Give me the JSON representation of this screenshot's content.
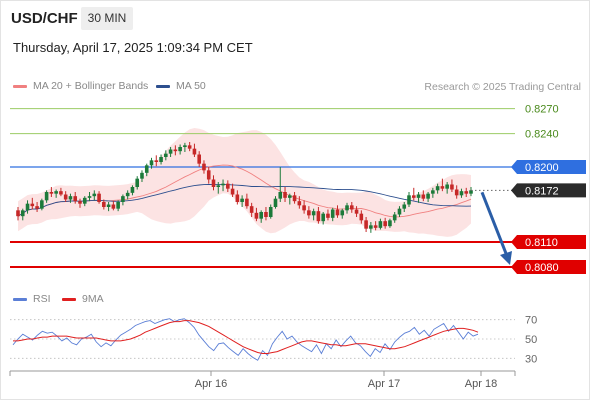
{
  "header": {
    "symbol": "USD/CHF",
    "timeframe": "30 MIN",
    "datetime": "Thursday, April 17, 2025 1:09:34 PM CET",
    "credit": "Research © 2025 Trading Central"
  },
  "legend": {
    "bollinger_label": "MA 20 + Bollinger Bands",
    "ma50_label": "MA 50",
    "rsi_label": "RSI",
    "nine_ma_label": "9MA"
  },
  "colors": {
    "bollinger": "#f08080",
    "band_fill": "#fbd9d9",
    "ma50": "#2d4f8e",
    "up_candle": "#1c7a3a",
    "down_candle": "#c62828",
    "resistance_green": "#9ccc65",
    "resistance_label": "#4a8a1c",
    "pivot_blue": "#2f6fe0",
    "support_red": "#e00000",
    "arrow": "#2b5ea7",
    "rsi": "#5b7fd6",
    "rsi_ma": "#e02020"
  },
  "chart_data": [
    {
      "type": "candlestick",
      "title": "USD/CHF 30 MIN",
      "x_tick_labels": [
        "Apr 16",
        "Apr 17",
        "Apr 18"
      ],
      "ylim": [
        0.8062,
        0.829
      ],
      "current_price": 0.8172,
      "levels": [
        {
          "label": "0.8270",
          "value": 0.827,
          "kind": "resistance"
        },
        {
          "label": "0.8240",
          "value": 0.824,
          "kind": "resistance"
        },
        {
          "label": "0.8200",
          "value": 0.82,
          "kind": "pivot"
        },
        {
          "label": "0.8110",
          "value": 0.811,
          "kind": "support"
        },
        {
          "label": "0.8080",
          "value": 0.808,
          "kind": "support"
        }
      ],
      "projection": {
        "from": 0.8172,
        "to": 0.808
      },
      "candles": [
        [
          0.8148,
          0.8152,
          0.8136,
          0.8141
        ],
        [
          0.8141,
          0.815,
          0.8136,
          0.8148
        ],
        [
          0.8148,
          0.816,
          0.8144,
          0.8156
        ],
        [
          0.8156,
          0.8163,
          0.8149,
          0.8153
        ],
        [
          0.8153,
          0.8158,
          0.8146,
          0.815
        ],
        [
          0.815,
          0.8162,
          0.8148,
          0.816
        ],
        [
          0.816,
          0.8172,
          0.8157,
          0.817
        ],
        [
          0.817,
          0.8176,
          0.8164,
          0.8168
        ],
        [
          0.8168,
          0.8173,
          0.8163,
          0.8171
        ],
        [
          0.8171,
          0.8175,
          0.8165,
          0.8167
        ],
        [
          0.8167,
          0.8171,
          0.8158,
          0.8161
        ],
        [
          0.8161,
          0.8168,
          0.8157,
          0.8165
        ],
        [
          0.8165,
          0.817,
          0.8156,
          0.8159
        ],
        [
          0.8159,
          0.8162,
          0.8151,
          0.8156
        ],
        [
          0.8156,
          0.8165,
          0.8153,
          0.8163
        ],
        [
          0.8163,
          0.817,
          0.8159,
          0.8165
        ],
        [
          0.8165,
          0.8172,
          0.816,
          0.8168
        ],
        [
          0.8168,
          0.8171,
          0.8156,
          0.8158
        ],
        [
          0.8158,
          0.8161,
          0.8149,
          0.8152
        ],
        [
          0.8152,
          0.8158,
          0.8147,
          0.8155
        ],
        [
          0.8155,
          0.8159,
          0.8148,
          0.815
        ],
        [
          0.815,
          0.816,
          0.8147,
          0.8158
        ],
        [
          0.8158,
          0.8167,
          0.8154,
          0.8165
        ],
        [
          0.8165,
          0.8172,
          0.8161,
          0.8169
        ],
        [
          0.8169,
          0.8178,
          0.8166,
          0.8176
        ],
        [
          0.8176,
          0.8189,
          0.8173,
          0.8186
        ],
        [
          0.8186,
          0.8196,
          0.8182,
          0.8193
        ],
        [
          0.8193,
          0.8204,
          0.8189,
          0.8202
        ],
        [
          0.8202,
          0.8211,
          0.8198,
          0.8208
        ],
        [
          0.8208,
          0.8214,
          0.8201,
          0.8206
        ],
        [
          0.8206,
          0.8215,
          0.8203,
          0.8212
        ],
        [
          0.8212,
          0.822,
          0.8208,
          0.8216
        ],
        [
          0.8216,
          0.8224,
          0.8212,
          0.8221
        ],
        [
          0.8221,
          0.8226,
          0.8214,
          0.8219
        ],
        [
          0.8219,
          0.8227,
          0.8215,
          0.8224
        ],
        [
          0.8224,
          0.8229,
          0.8218,
          0.8226
        ],
        [
          0.8226,
          0.823,
          0.8219,
          0.8222
        ],
        [
          0.8222,
          0.8228,
          0.8212,
          0.8215
        ],
        [
          0.8215,
          0.8219,
          0.82,
          0.8204
        ],
        [
          0.8204,
          0.8208,
          0.8192,
          0.8196
        ],
        [
          0.8196,
          0.82,
          0.818,
          0.8185
        ],
        [
          0.8185,
          0.819,
          0.8172,
          0.8176
        ],
        [
          0.8176,
          0.8182,
          0.8168,
          0.8178
        ],
        [
          0.8178,
          0.8185,
          0.8171,
          0.818
        ],
        [
          0.818,
          0.8184,
          0.817,
          0.8174
        ],
        [
          0.8174,
          0.818,
          0.8164,
          0.8167
        ],
        [
          0.8167,
          0.8172,
          0.8155,
          0.8158
        ],
        [
          0.8158,
          0.8166,
          0.8152,
          0.8162
        ],
        [
          0.8162,
          0.8168,
          0.815,
          0.8153
        ],
        [
          0.8153,
          0.8157,
          0.814,
          0.8145
        ],
        [
          0.8145,
          0.8151,
          0.8135,
          0.8138
        ],
        [
          0.8138,
          0.8148,
          0.8133,
          0.8146
        ],
        [
          0.8146,
          0.8152,
          0.8136,
          0.814
        ],
        [
          0.814,
          0.8155,
          0.8138,
          0.8152
        ],
        [
          0.8152,
          0.8165,
          0.815,
          0.8162
        ],
        [
          0.8162,
          0.82,
          0.8158,
          0.817
        ],
        [
          0.817,
          0.8176,
          0.8158,
          0.8163
        ],
        [
          0.8163,
          0.8168,
          0.8155,
          0.8166
        ],
        [
          0.8166,
          0.817,
          0.8156,
          0.8159
        ],
        [
          0.8159,
          0.8165,
          0.815,
          0.8154
        ],
        [
          0.8154,
          0.816,
          0.8144,
          0.8148
        ],
        [
          0.8148,
          0.8153,
          0.8138,
          0.8142
        ],
        [
          0.8142,
          0.815,
          0.8136,
          0.8147
        ],
        [
          0.8147,
          0.8152,
          0.8132,
          0.8135
        ],
        [
          0.8135,
          0.8146,
          0.8131,
          0.8144
        ],
        [
          0.8144,
          0.8149,
          0.8136,
          0.8139
        ],
        [
          0.8139,
          0.8151,
          0.8135,
          0.8149
        ],
        [
          0.8149,
          0.8154,
          0.8139,
          0.8142
        ],
        [
          0.8142,
          0.815,
          0.8138,
          0.8148
        ],
        [
          0.8148,
          0.8157,
          0.8144,
          0.8154
        ],
        [
          0.8154,
          0.8158,
          0.8145,
          0.8149
        ],
        [
          0.8149,
          0.8153,
          0.814,
          0.8144
        ],
        [
          0.8144,
          0.8148,
          0.8132,
          0.8136
        ],
        [
          0.8136,
          0.814,
          0.8122,
          0.8126
        ],
        [
          0.8126,
          0.8134,
          0.8121,
          0.813
        ],
        [
          0.813,
          0.8135,
          0.8124,
          0.8127
        ],
        [
          0.8127,
          0.8138,
          0.8125,
          0.8135
        ],
        [
          0.8135,
          0.8139,
          0.8126,
          0.8129
        ],
        [
          0.8129,
          0.8138,
          0.8127,
          0.8136
        ],
        [
          0.8136,
          0.8146,
          0.8133,
          0.8143
        ],
        [
          0.8143,
          0.8153,
          0.814,
          0.815
        ],
        [
          0.815,
          0.8158,
          0.8146,
          0.8155
        ],
        [
          0.8155,
          0.817,
          0.8152,
          0.8166
        ],
        [
          0.8166,
          0.8175,
          0.816,
          0.8163
        ],
        [
          0.8163,
          0.817,
          0.8157,
          0.8167
        ],
        [
          0.8167,
          0.8172,
          0.8159,
          0.8162
        ],
        [
          0.8162,
          0.817,
          0.8158,
          0.8168
        ],
        [
          0.8168,
          0.8175,
          0.8163,
          0.8172
        ],
        [
          0.8172,
          0.818,
          0.8168,
          0.8177
        ],
        [
          0.8177,
          0.8186,
          0.8171,
          0.8174
        ],
        [
          0.8174,
          0.8182,
          0.8168,
          0.8179
        ],
        [
          0.8179,
          0.8185,
          0.817,
          0.8173
        ],
        [
          0.8173,
          0.8178,
          0.8162,
          0.8166
        ],
        [
          0.8166,
          0.8174,
          0.8163,
          0.8171
        ],
        [
          0.8171,
          0.8175,
          0.8164,
          0.8168
        ],
        [
          0.8168,
          0.8176,
          0.8165,
          0.8172
        ]
      ]
    },
    {
      "type": "line",
      "title": "RSI",
      "ylim": [
        20,
        80
      ],
      "y_tick_labels": [
        "70",
        "50",
        "30"
      ],
      "series": [
        {
          "name": "RSI",
          "values": [
            44,
            50,
            55,
            52,
            49,
            54,
            58,
            56,
            57,
            53,
            48,
            51,
            46,
            44,
            50,
            52,
            55,
            47,
            42,
            46,
            43,
            49,
            54,
            57,
            60,
            64,
            66,
            68,
            69,
            66,
            68,
            70,
            71,
            68,
            70,
            71,
            67,
            62,
            54,
            48,
            42,
            38,
            45,
            46,
            41,
            37,
            33,
            40,
            35,
            31,
            28,
            38,
            33,
            45,
            52,
            58,
            50,
            53,
            47,
            43,
            40,
            37,
            44,
            35,
            45,
            40,
            49,
            42,
            48,
            53,
            46,
            43,
            37,
            32,
            40,
            36,
            45,
            39,
            47,
            52,
            56,
            58,
            62,
            55,
            59,
            53,
            60,
            63,
            66,
            58,
            64,
            57,
            50,
            57,
            53,
            55
          ]
        },
        {
          "name": "9MA",
          "values": [
            48,
            48,
            49,
            50,
            50,
            51,
            52,
            52,
            53,
            53,
            53,
            53,
            52,
            51,
            51,
            51,
            51,
            51,
            50,
            49,
            48,
            48,
            48,
            49,
            50,
            52,
            54,
            57,
            59,
            61,
            63,
            65,
            67,
            68,
            68,
            69,
            69,
            68,
            67,
            65,
            63,
            60,
            57,
            54,
            51,
            48,
            45,
            42,
            40,
            38,
            36,
            35,
            35,
            36,
            37,
            39,
            41,
            43,
            45,
            47,
            48,
            48,
            47,
            46,
            45,
            44,
            44,
            43,
            43,
            44,
            45,
            45,
            45,
            44,
            43,
            42,
            41,
            40,
            40,
            41,
            42,
            44,
            46,
            48,
            50,
            52,
            54,
            56,
            58,
            59,
            60,
            61,
            61,
            60,
            59,
            57
          ]
        }
      ]
    }
  ]
}
